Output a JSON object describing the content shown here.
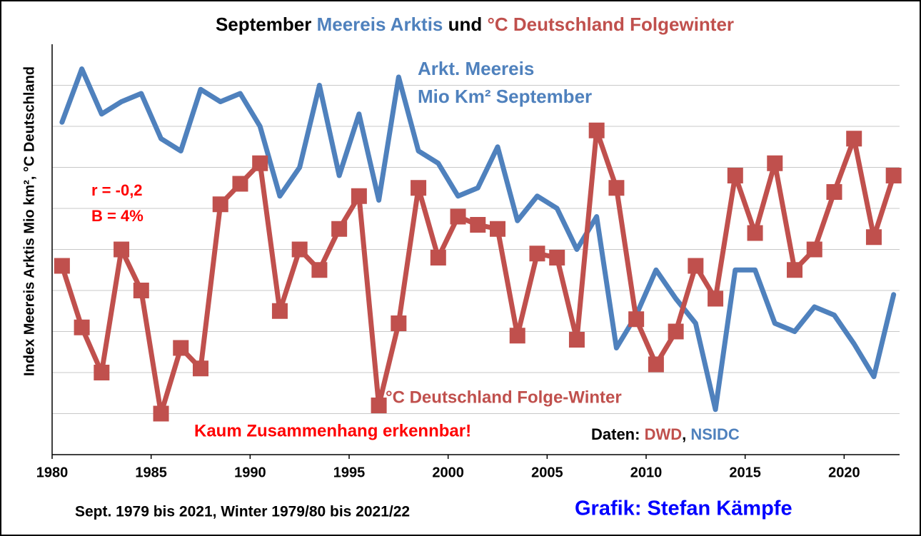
{
  "chart_data": {
    "type": "line",
    "title": [
      {
        "text": "September",
        "color": "#000000"
      },
      {
        "text": "Meereis Arktis",
        "color": "#4f81bd"
      },
      {
        "text": "und",
        "color": "#000000"
      },
      {
        "text": "°C Deutschland Folgewinter",
        "color": "#c0504d"
      }
    ],
    "y_label": "Index Meereis Arktis Mio km², °C Deutschland",
    "x": [
      1980.5,
      1981.5,
      1982.5,
      1983.5,
      1984.5,
      1985.5,
      1986.5,
      1987.5,
      1988.5,
      1989.5,
      1990.5,
      1991.5,
      1992.5,
      1993.5,
      1994.5,
      1995.5,
      1996.5,
      1997.5,
      1998.5,
      1999.5,
      2000.5,
      2001.5,
      2002.5,
      2003.5,
      2004.5,
      2005.5,
      2006.5,
      2007.5,
      2008.5,
      2009.5,
      2010.5,
      2011.5,
      2012.5,
      2013.5,
      2014.5,
      2015.5,
      2016.5,
      2017.5,
      2018.5,
      2019.5,
      2020.5,
      2021.5,
      2022.5
    ],
    "series": [
      {
        "color": "#4f81bd",
        "marker": "none",
        "values": [
          8.1,
          9.4,
          8.3,
          8.6,
          8.8,
          7.7,
          7.4,
          8.9,
          8.6,
          8.8,
          8.0,
          6.3,
          7.0,
          9.0,
          6.8,
          8.3,
          6.2,
          9.2,
          7.4,
          7.1,
          6.3,
          6.5,
          7.5,
          5.7,
          6.3,
          6.0,
          5.0,
          5.8,
          2.6,
          3.4,
          4.5,
          3.8,
          3.2,
          1.1,
          4.5,
          4.5,
          3.2,
          3.0,
          3.6,
          3.4,
          2.7,
          1.9,
          3.9
        ]
      },
      {
        "color": "#c0504d",
        "marker": "square",
        "values": [
          4.6,
          3.1,
          2.0,
          5.0,
          4.0,
          1.0,
          2.6,
          2.1,
          6.1,
          6.6,
          7.1,
          3.5,
          5.0,
          4.5,
          5.5,
          6.3,
          1.2,
          3.2,
          6.5,
          4.8,
          5.8,
          5.6,
          5.5,
          2.9,
          4.9,
          4.8,
          2.8,
          7.9,
          6.5,
          3.3,
          2.2,
          3.0,
          4.6,
          3.8,
          6.8,
          5.4,
          7.1,
          4.5,
          5.0,
          6.4,
          7.7,
          5.3,
          6.8
        ]
      }
    ],
    "xlim": [
      1980,
      2022.8
    ],
    "xticks": [
      1980,
      1985,
      1990,
      1995,
      2000,
      2005,
      2010,
      2015,
      2020
    ],
    "ylim": [
      0,
      10
    ],
    "yticks": [
      1,
      2,
      3,
      4,
      5,
      6,
      7,
      8,
      9
    ],
    "grid": true,
    "annotations": [
      {
        "text": "Arkt. Meereis",
        "color": "#4f81bd"
      },
      {
        "text": "Mio Km² September",
        "color": "#4f81bd"
      },
      {
        "text": "r = -0,2",
        "color": "#ff0000"
      },
      {
        "text": "B = 4%",
        "color": "#ff0000"
      },
      {
        "text": "°C Deutschland Folge-Winter",
        "color": "#c0504d"
      },
      {
        "text": "Kaum Zusammenhang erkennbar!",
        "color": "#ff0000"
      }
    ],
    "source": [
      {
        "text": "Daten: ",
        "color": "#000000"
      },
      {
        "text": "DWD",
        "color": "#c0504d"
      },
      {
        "text": ", ",
        "color": "#000000"
      },
      {
        "text": "NSIDC",
        "color": "#4f81bd"
      }
    ],
    "footer": "Sept. 1979 bis 2021, Winter 1979/80 bis 2021/22",
    "credit": "Grafik: Stefan Kämpfe"
  }
}
